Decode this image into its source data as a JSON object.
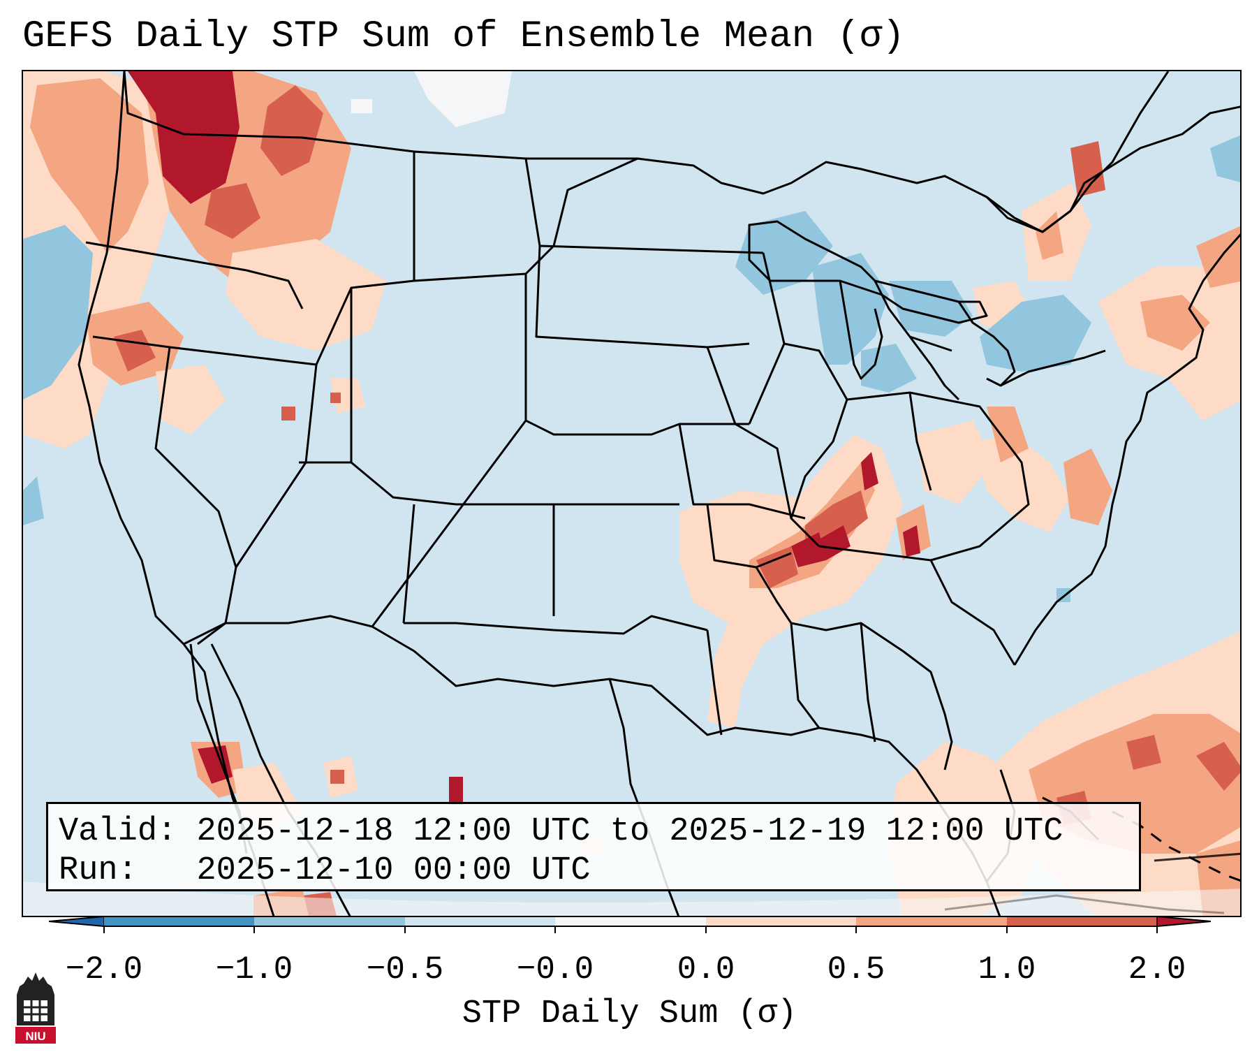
{
  "title": "GEFS Daily STP Sum of Ensemble Mean (σ)",
  "info": {
    "valid_label": "Valid:",
    "valid_value": "2025-12-18 12:00 UTC to 2025-12-19 12:00 UTC",
    "run_label": "Run:",
    "run_value": "2025-12-10 00:00 UTC"
  },
  "colorbar": {
    "label": "STP Daily Sum (σ)",
    "ticks": [
      "−2.0",
      "−1.0",
      "−0.5",
      "−0.0",
      "0.0",
      "0.5",
      "1.0",
      "2.0"
    ],
    "colors": [
      "#2166ac",
      "#4393c3",
      "#92c5de",
      "#d1e5f0",
      "#f7f7f7",
      "#fddbc7",
      "#f4a582",
      "#d6604d",
      "#b2182b"
    ]
  },
  "logo": {
    "text": "NIU",
    "icon": "niu-tower-logo-icon"
  }
}
